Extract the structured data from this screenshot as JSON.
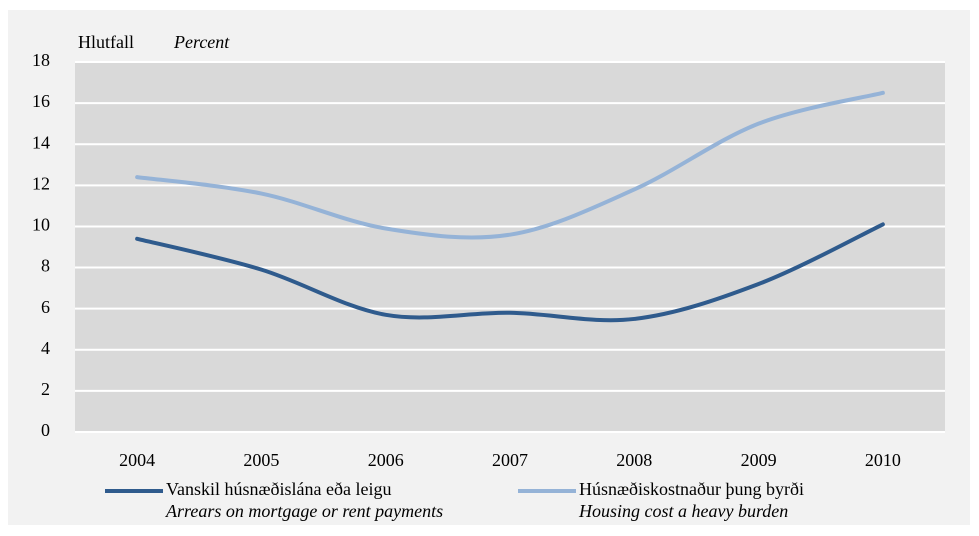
{
  "chart_data": {
    "type": "line",
    "ylabel": "Hlutfall",
    "ylabel_en": "Percent",
    "categories": [
      "2004",
      "2005",
      "2006",
      "2007",
      "2008",
      "2009",
      "2010"
    ],
    "series": [
      {
        "name": "Vanskil húsnæðislána eða leigu",
        "subtitle": "Arrears on mortgage or rent payments",
        "color": "#2f5b8d",
        "values": [
          9.4,
          7.9,
          5.7,
          5.8,
          5.5,
          7.2,
          10.1
        ]
      },
      {
        "name": "Húsnæðiskostnaður þung byrði",
        "subtitle": "Housing cost a heavy burden",
        "color": "#95b3d7",
        "values": [
          12.4,
          11.6,
          9.9,
          9.6,
          11.8,
          15.0,
          16.5
        ]
      }
    ],
    "ylim": [
      0,
      18
    ],
    "yticks": [
      0,
      2,
      4,
      6,
      8,
      10,
      12,
      14,
      16,
      18
    ],
    "grid": true,
    "smooth": true
  }
}
